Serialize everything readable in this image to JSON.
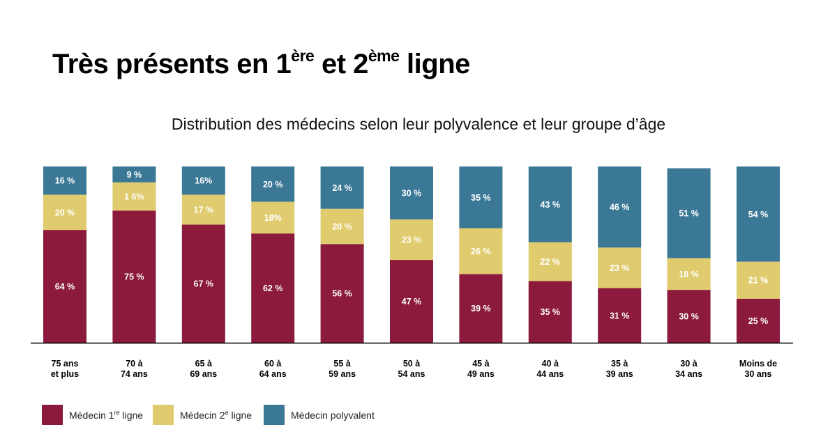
{
  "title": {
    "pre": "Très présents en 1",
    "sup1": "ère",
    "mid": " et 2",
    "sup2": "ème",
    "post": " ligne"
  },
  "subtitle": "Distribution des médecins selon leur polyvalence et leur groupe d’âge",
  "colors": {
    "first": "#8b1a3c",
    "second": "#e0cc6f",
    "poly": "#3b7896",
    "axis": "#000000"
  },
  "legend": [
    {
      "pre": "Médecin 1",
      "sup": "re",
      "post": " ligne"
    },
    {
      "pre": "Médecin 2",
      "sup": "e",
      "post": " ligne"
    },
    {
      "pre": "Médecin polyvalent",
      "sup": "",
      "post": ""
    }
  ],
  "chart_data": {
    "type": "bar",
    "stacked": true,
    "normalized_to_100": true,
    "categories": [
      [
        "75 ans",
        "et plus"
      ],
      [
        "70 à",
        "74 ans"
      ],
      [
        "65 à",
        "69 ans"
      ],
      [
        "60 à",
        "64 ans"
      ],
      [
        "55 à",
        "59 ans"
      ],
      [
        "50 à",
        "54 ans"
      ],
      [
        "45 à",
        "49 ans"
      ],
      [
        "40 à",
        "44 ans"
      ],
      [
        "35 à",
        "39 ans"
      ],
      [
        "30 à",
        "34 ans"
      ],
      [
        "Moins de",
        "30 ans"
      ]
    ],
    "series": [
      {
        "key": "first",
        "values": [
          64,
          75,
          67,
          62,
          56,
          47,
          39,
          35,
          31,
          30,
          25
        ],
        "labels": [
          "64 %",
          "75 %",
          "67 %",
          "62 %",
          "56 %",
          "47 %",
          "39 %",
          "35 %",
          "31 %",
          "30 %",
          "25 %"
        ]
      },
      {
        "key": "second",
        "values": [
          20,
          16,
          17,
          18,
          20,
          23,
          26,
          22,
          23,
          18,
          21
        ],
        "labels": [
          "20 %",
          "1 6%",
          "17 %",
          "18%",
          "20 %",
          "23 %",
          "26 %",
          "22 %",
          "23 %",
          "18 %",
          "21 %"
        ]
      },
      {
        "key": "poly",
        "values": [
          16,
          9,
          16,
          20,
          24,
          30,
          35,
          43,
          46,
          51,
          54
        ],
        "labels": [
          "16 %",
          "9 %",
          "16%",
          "20 %",
          "24 %",
          "30 %",
          "35 %",
          "43 %",
          "46 %",
          "51 %",
          "54 %"
        ]
      }
    ],
    "ylim": [
      0,
      100
    ],
    "grid": false,
    "legend_position": "bottom-left"
  }
}
